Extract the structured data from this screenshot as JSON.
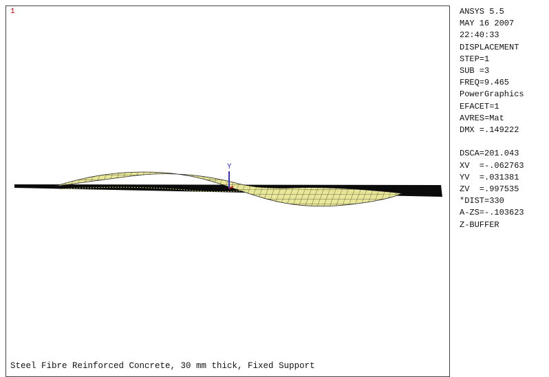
{
  "window_number": "1",
  "axis_label": "Y",
  "caption": "Steel Fibre Reinforced Concrete, 30 mm thick, Fixed Support",
  "info": {
    "group1": [
      "ANSYS 5.5",
      "MAY 16 2007",
      "22:40:33",
      "DISPLACEMENT",
      "STEP=1",
      "SUB =3",
      "FREQ=9.465",
      "PowerGraphics",
      "EFACET=1",
      "AVRES=Mat",
      "DMX =.149222"
    ],
    "group2": [
      "DSCA=201.043",
      "XV  =-.062763",
      "YV  =.031381",
      "ZV  =.997535",
      "*DIST=330",
      "A-ZS=-.103623",
      "Z-BUFFER"
    ]
  }
}
